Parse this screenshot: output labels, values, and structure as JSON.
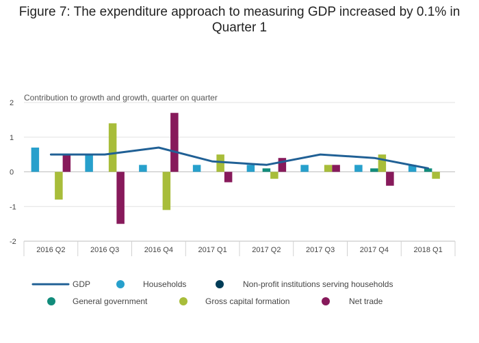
{
  "chart_data": {
    "type": "bar",
    "title": "Figure 7: The expenditure approach to measuring GDP increased by 0.1% in Quarter 1",
    "subtitle": "Contribution to growth and growth, quarter on quarter",
    "categories": [
      "2016 Q2",
      "2016 Q3",
      "2016 Q4",
      "2017 Q1",
      "2017 Q2",
      "2017 Q3",
      "2017 Q4",
      "2018 Q1"
    ],
    "ylim": [
      -2,
      2
    ],
    "yticks": [
      2,
      1,
      0,
      -1,
      -2
    ],
    "grid": true,
    "legend_position": "bottom",
    "series": [
      {
        "name": "Households",
        "kind": "bar",
        "color": "#27a0cc",
        "values": [
          0.7,
          0.5,
          0.2,
          0.2,
          0.2,
          0.2,
          0.2,
          0.2
        ]
      },
      {
        "name": "Non-profit institutions serving households",
        "kind": "bar",
        "color": "#003c57",
        "values": [
          0,
          0,
          0,
          0,
          0,
          0,
          0,
          0
        ]
      },
      {
        "name": "General government",
        "kind": "bar",
        "color": "#118c7b",
        "values": [
          0,
          0,
          0,
          0,
          0.1,
          0,
          0.1,
          0.1
        ]
      },
      {
        "name": "Gross capital formation",
        "kind": "bar",
        "color": "#a8bd3a",
        "values": [
          -0.8,
          1.4,
          -1.1,
          0.5,
          -0.2,
          0.2,
          0.5,
          -0.2
        ]
      },
      {
        "name": "Net trade",
        "kind": "bar",
        "color": "#871a5b",
        "values": [
          0.5,
          -1.5,
          1.7,
          -0.3,
          0.4,
          0.2,
          -0.4,
          0
        ]
      },
      {
        "name": "GDP",
        "kind": "line",
        "color": "#206095",
        "values": [
          0.5,
          0.5,
          0.7,
          0.3,
          0.2,
          0.5,
          0.4,
          0.1
        ]
      }
    ]
  }
}
